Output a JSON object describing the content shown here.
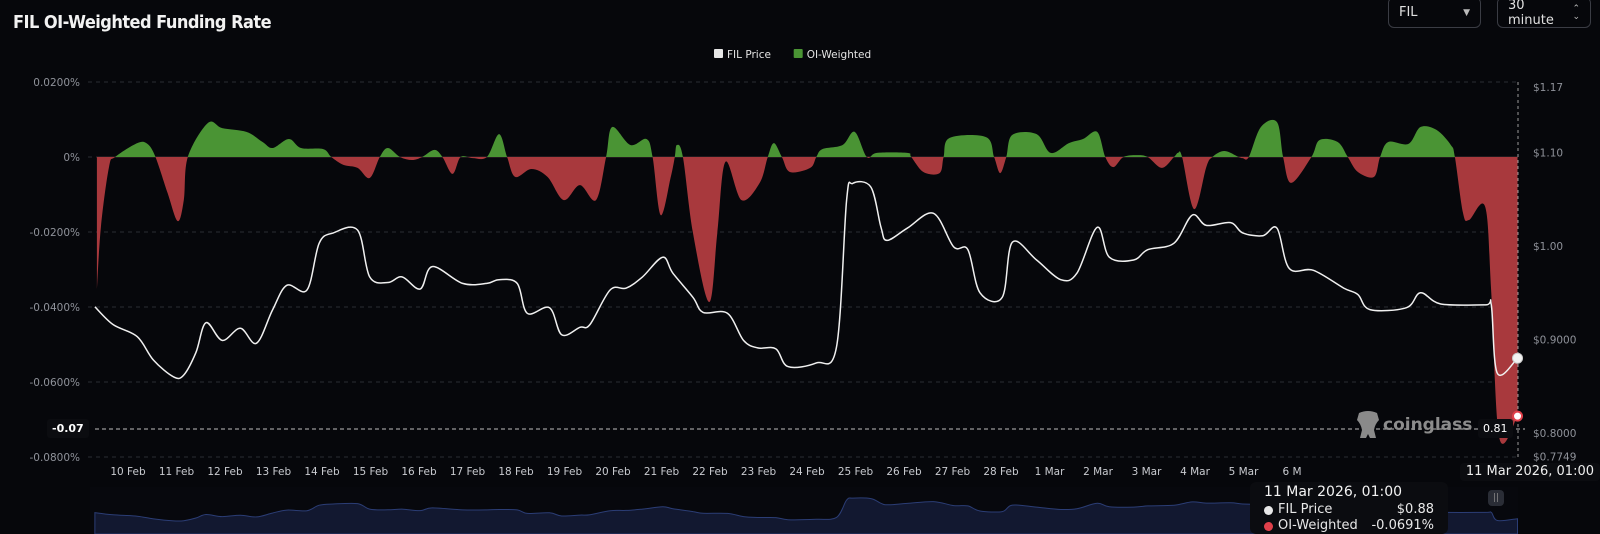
{
  "header": {
    "title": "FIL OI-Weighted Funding Rate"
  },
  "controls": {
    "symbol": "FIL",
    "interval": "30 minute"
  },
  "watermark": "coinglass",
  "tooltip": {
    "date": "11 Mar 2026, 01:00",
    "rows": [
      {
        "label": "FIL Price",
        "value": "$0.88",
        "color": "#e8e8e8"
      },
      {
        "label": "OI-Weighted",
        "value": "-0.0691%",
        "color": "#e0404a"
      }
    ]
  },
  "crosshair": {
    "x_label": "11 Mar 2026, 01:00",
    "y_left_label": "-0.07",
    "y_right_label": "0.81"
  },
  "chart_data": {
    "type": "line+area",
    "title": "FIL OI-Weighted Funding Rate",
    "legend": {
      "placement": "top-center",
      "entries": [
        {
          "name": "FIL Price",
          "color": "#e6e6e6"
        },
        {
          "name": "OI-Weighted",
          "color": "#4a9434"
        }
      ]
    },
    "colors": {
      "positive": "#4a9434",
      "negative": "#a8393d",
      "price": "#f0f0f0",
      "grid": "#2a2c33",
      "navigator": "#2b3d75"
    },
    "grid": true,
    "x_tick_labels": [
      "10 Feb",
      "11 Feb",
      "12 Feb",
      "13 Feb",
      "14 Feb",
      "15 Feb",
      "16 Feb",
      "17 Feb",
      "18 Feb",
      "19 Feb",
      "20 Feb",
      "21 Feb",
      "22 Feb",
      "23 Feb",
      "24 Feb",
      "25 Feb",
      "26 Feb",
      "27 Feb",
      "28 Feb",
      "1 Mar",
      "2 Mar",
      "3 Mar",
      "4 Mar",
      "5 Mar",
      "6 M"
    ],
    "y_left": {
      "label": "",
      "range": [
        -0.08,
        0.02
      ],
      "unit": "%",
      "ticks": [
        {
          "v": 0.02,
          "t": "0.0200%"
        },
        {
          "v": 0,
          "t": "0%"
        },
        {
          "v": -0.02,
          "t": "-0.0200%"
        },
        {
          "v": -0.04,
          "t": "-0.0400%"
        },
        {
          "v": -0.06,
          "t": "-0.0600%"
        },
        {
          "v": -0.08,
          "t": "-0.0800%"
        }
      ]
    },
    "y_right": {
      "label": "",
      "range": [
        0.7749,
        1.17
      ],
      "ticks": [
        {
          "v": 1.17,
          "t": "$1.17"
        },
        {
          "v": 1.1,
          "t": "$1.10"
        },
        {
          "v": 1.0,
          "t": "$1.00"
        },
        {
          "v": 0.9,
          "t": "$0.9000"
        },
        {
          "v": 0.8,
          "t": "$0.8000"
        },
        {
          "v": 0.7749,
          "t": "$0.7749"
        }
      ]
    },
    "series": [
      {
        "name": "FIL Price",
        "axis": "right",
        "points": [
          [
            "2026-02-09 17:00",
            0.935
          ],
          [
            "2026-02-10 02:00",
            0.916
          ],
          [
            "2026-02-10 14:00",
            0.903
          ],
          [
            "2026-02-10 22:00",
            0.878
          ],
          [
            "2026-02-11 08:00",
            0.86
          ],
          [
            "2026-02-11 13:00",
            0.862
          ],
          [
            "2026-02-11 19:00",
            0.886
          ],
          [
            "2026-02-12 00:00",
            0.918
          ],
          [
            "2026-02-12 08:00",
            0.899
          ],
          [
            "2026-02-12 17:00",
            0.912
          ],
          [
            "2026-02-13 01:00",
            0.896
          ],
          [
            "2026-02-13 09:00",
            0.932
          ],
          [
            "2026-02-13 16:00",
            0.958
          ],
          [
            "2026-02-14 02:00",
            0.953
          ],
          [
            "2026-02-14 08:00",
            1.003
          ],
          [
            "2026-02-14 15:00",
            1.014
          ],
          [
            "2026-02-15 03:00",
            1.017
          ],
          [
            "2026-02-15 09:00",
            0.967
          ],
          [
            "2026-02-15 18:00",
            0.961
          ],
          [
            "2026-02-16 01:00",
            0.967
          ],
          [
            "2026-02-16 10:00",
            0.954
          ],
          [
            "2026-02-16 16:00",
            0.978
          ],
          [
            "2026-02-17 07:00",
            0.96
          ],
          [
            "2026-02-17 19:00",
            0.96
          ],
          [
            "2026-02-18 01:00",
            0.964
          ],
          [
            "2026-02-18 10:00",
            0.96
          ],
          [
            "2026-02-18 15:00",
            0.928
          ],
          [
            "2026-02-19 02:00",
            0.934
          ],
          [
            "2026-02-19 08:00",
            0.905
          ],
          [
            "2026-02-19 17:00",
            0.913
          ],
          [
            "2026-02-19 22:00",
            0.916
          ],
          [
            "2026-02-20 08:00",
            0.953
          ],
          [
            "2026-02-20 16:00",
            0.955
          ],
          [
            "2026-02-21 00:00",
            0.967
          ],
          [
            "2026-02-21 10:00",
            0.988
          ],
          [
            "2026-02-21 15:00",
            0.971
          ],
          [
            "2026-02-22 01:00",
            0.945
          ],
          [
            "2026-02-22 06:00",
            0.929
          ],
          [
            "2026-02-22 18:00",
            0.928
          ],
          [
            "2026-02-23 02:00",
            0.899
          ],
          [
            "2026-02-23 09:00",
            0.891
          ],
          [
            "2026-02-23 18:00",
            0.89
          ],
          [
            "2026-02-24 00:00",
            0.871
          ],
          [
            "2026-02-24 14:00",
            0.875
          ],
          [
            "2026-02-25 00:00",
            0.892
          ],
          [
            "2026-02-25 05:00",
            1.049
          ],
          [
            "2026-02-25 08:00",
            1.067
          ],
          [
            "2026-02-25 17:00",
            1.063
          ],
          [
            "2026-02-25 22:00",
            1.02
          ],
          [
            "2026-02-26 01:00",
            1.006
          ],
          [
            "2026-02-26 11:00",
            1.019
          ],
          [
            "2026-02-27 00:00",
            1.035
          ],
          [
            "2026-02-27 10:00",
            0.999
          ],
          [
            "2026-02-27 17:00",
            0.996
          ],
          [
            "2026-02-27 23:00",
            0.95
          ],
          [
            "2026-02-28 10:00",
            0.945
          ],
          [
            "2026-02-28 15:00",
            1.004
          ],
          [
            "2026-03-01 03:00",
            0.985
          ],
          [
            "2026-03-01 15:00",
            0.964
          ],
          [
            "2026-03-01 23:00",
            0.971
          ],
          [
            "2026-03-02 09:00",
            1.02
          ],
          [
            "2026-03-02 15:00",
            0.988
          ],
          [
            "2026-03-03 03:00",
            0.985
          ],
          [
            "2026-03-03 10:00",
            0.996
          ],
          [
            "2026-03-03 23:00",
            1.003
          ],
          [
            "2026-03-04 08:00",
            1.033
          ],
          [
            "2026-03-04 15:00",
            1.022
          ],
          [
            "2026-03-05 03:00",
            1.025
          ],
          [
            "2026-03-05 09:00",
            1.014
          ],
          [
            "2026-03-05 19:00",
            1.011
          ],
          [
            "2026-03-06 02:00",
            1.019
          ],
          [
            "2026-03-06 08:00",
            0.976
          ],
          [
            "2026-03-06 20:00",
            0.974
          ],
          [
            "2026-03-07 11:00",
            0.955
          ],
          [
            "2026-03-07 18:00",
            0.948
          ],
          [
            "2026-03-08 00:00",
            0.932
          ],
          [
            "2026-03-08 18:00",
            0.934
          ],
          [
            "2026-03-09 01:00",
            0.95
          ],
          [
            "2026-03-09 11:00",
            0.938
          ],
          [
            "2026-03-10 09:00",
            0.937
          ],
          [
            "2026-03-10 12:00",
            0.937
          ],
          [
            "2026-03-10 15:00",
            0.864
          ],
          [
            "2026-03-11 01:00",
            0.88
          ]
        ]
      },
      {
        "name": "OI-Weighted",
        "axis": "left",
        "unit": "%",
        "points": [
          [
            "2026-02-09 18:00",
            -0.0355
          ],
          [
            "2026-02-09 20:00",
            -0.0187
          ],
          [
            "2026-02-10 00:00",
            -0.0027
          ],
          [
            "2026-02-10 03:00",
            0
          ],
          [
            "2026-02-10 14:00",
            0.0037
          ],
          [
            "2026-02-10 19:00",
            0.0035
          ],
          [
            "2026-02-10 23:00",
            0
          ],
          [
            "2026-02-11 05:00",
            -0.0096
          ],
          [
            "2026-02-11 10:00",
            -0.0171
          ],
          [
            "2026-02-11 13:00",
            -0.0115
          ],
          [
            "2026-02-11 15:00",
            0
          ],
          [
            "2026-02-12 01:00",
            0.0091
          ],
          [
            "2026-02-12 08:00",
            0.0077
          ],
          [
            "2026-02-12 20:00",
            0.0067
          ],
          [
            "2026-02-13 04:00",
            0.004
          ],
          [
            "2026-02-13 09:00",
            0.0024
          ],
          [
            "2026-02-13 17:00",
            0.0048
          ],
          [
            "2026-02-13 23:00",
            0.0024
          ],
          [
            "2026-02-14 10:00",
            0.0021
          ],
          [
            "2026-02-14 14:00",
            0
          ],
          [
            "2026-02-14 20:00",
            -0.0021
          ],
          [
            "2026-02-15 03:00",
            -0.0029
          ],
          [
            "2026-02-15 09:00",
            -0.0056
          ],
          [
            "2026-02-15 14:00",
            0
          ],
          [
            "2026-02-15 18:00",
            0.0024
          ],
          [
            "2026-02-16 00:00",
            0
          ],
          [
            "2026-02-16 06:00",
            -0.0008
          ],
          [
            "2026-02-16 11:00",
            0
          ],
          [
            "2026-02-16 17:00",
            0.0019
          ],
          [
            "2026-02-16 21:00",
            0
          ],
          [
            "2026-02-17 02:00",
            -0.0045
          ],
          [
            "2026-02-17 06:00",
            0
          ],
          [
            "2026-02-17 12:00",
            -0.0003
          ],
          [
            "2026-02-17 19:00",
            0
          ],
          [
            "2026-02-18 01:00",
            0.0061
          ],
          [
            "2026-02-18 05:00",
            0
          ],
          [
            "2026-02-18 09:00",
            -0.0053
          ],
          [
            "2026-02-18 17:00",
            -0.0032
          ],
          [
            "2026-02-19 01:00",
            -0.0053
          ],
          [
            "2026-02-19 09:00",
            -0.0115
          ],
          [
            "2026-02-19 17:00",
            -0.0075
          ],
          [
            "2026-02-20 01:00",
            -0.0115
          ],
          [
            "2026-02-20 06:00",
            0
          ],
          [
            "2026-02-20 09:00",
            0.008
          ],
          [
            "2026-02-20 18:00",
            0.0032
          ],
          [
            "2026-02-21 02:00",
            0.0048
          ],
          [
            "2026-02-21 05:00",
            0
          ],
          [
            "2026-02-21 09:00",
            -0.0155
          ],
          [
            "2026-02-21 14:00",
            -0.0053
          ],
          [
            "2026-02-21 16:00",
            0
          ],
          [
            "2026-02-21 17:00",
            0.0032
          ],
          [
            "2026-02-21 20:00",
            0
          ],
          [
            "2026-02-22 01:00",
            -0.0203
          ],
          [
            "2026-02-22 09:00",
            -0.0387
          ],
          [
            "2026-02-22 13:00",
            -0.0203
          ],
          [
            "2026-02-22 17:00",
            -0.0013
          ],
          [
            "2026-02-23 01:00",
            -0.0115
          ],
          [
            "2026-02-23 10:00",
            -0.0069
          ],
          [
            "2026-02-23 14:00",
            0
          ],
          [
            "2026-02-23 17:00",
            0.0037
          ],
          [
            "2026-02-23 21:00",
            0
          ],
          [
            "2026-02-24 01:00",
            -0.004
          ],
          [
            "2026-02-24 11:00",
            -0.0029
          ],
          [
            "2026-02-24 14:00",
            0
          ],
          [
            "2026-02-24 17:00",
            0.0021
          ],
          [
            "2026-02-25 03:00",
            0.0032
          ],
          [
            "2026-02-25 09:00",
            0.0067
          ],
          [
            "2026-02-25 15:00",
            0
          ],
          [
            "2026-02-25 20:00",
            0.0011
          ],
          [
            "2026-02-26 11:00",
            0.0011
          ],
          [
            "2026-02-26 13:00",
            0
          ],
          [
            "2026-02-26 19:00",
            -0.004
          ],
          [
            "2026-02-27 03:00",
            -0.0043
          ],
          [
            "2026-02-27 05:00",
            0
          ],
          [
            "2026-02-27 08:00",
            0.0051
          ],
          [
            "2026-02-28 02:00",
            0.0053
          ],
          [
            "2026-02-28 06:00",
            0
          ],
          [
            "2026-02-28 09:00",
            -0.0043
          ],
          [
            "2026-02-28 12:00",
            0
          ],
          [
            "2026-02-28 15:00",
            0.0059
          ],
          [
            "2026-03-01 03:00",
            0.0061
          ],
          [
            "2026-03-01 10:00",
            0.0011
          ],
          [
            "2026-03-01 19:00",
            0.0037
          ],
          [
            "2026-03-02 02:00",
            0.0048
          ],
          [
            "2026-03-02 09:00",
            0.0067
          ],
          [
            "2026-03-02 13:00",
            0
          ],
          [
            "2026-03-02 17:00",
            -0.0027
          ],
          [
            "2026-03-02 22:00",
            0
          ],
          [
            "2026-03-03 05:00",
            0.0005
          ],
          [
            "2026-03-03 10:00",
            0
          ],
          [
            "2026-03-03 17:00",
            -0.0029
          ],
          [
            "2026-03-03 23:00",
            0
          ],
          [
            "2026-03-04 01:00",
            0.0011
          ],
          [
            "2026-03-04 03:00",
            0
          ],
          [
            "2026-03-04 09:00",
            -0.0139
          ],
          [
            "2026-03-04 15:00",
            -0.0027
          ],
          [
            "2026-03-04 18:00",
            0
          ],
          [
            "2026-03-05 00:00",
            0.0016
          ],
          [
            "2026-03-05 07:00",
            0
          ],
          [
            "2026-03-05 09:00",
            -0.0003
          ],
          [
            "2026-03-05 12:00",
            0
          ],
          [
            "2026-03-05 18:00",
            0.008
          ],
          [
            "2026-03-06 02:00",
            0.0093
          ],
          [
            "2026-03-06 05:00",
            0
          ],
          [
            "2026-03-06 09:00",
            -0.0069
          ],
          [
            "2026-03-06 19:00",
            0
          ],
          [
            "2026-03-06 23:00",
            0.0045
          ],
          [
            "2026-03-07 08:00",
            0.004
          ],
          [
            "2026-03-07 13:00",
            0
          ],
          [
            "2026-03-07 18:00",
            -0.004
          ],
          [
            "2026-03-08 02:00",
            -0.0053
          ],
          [
            "2026-03-08 05:00",
            0
          ],
          [
            "2026-03-08 09:00",
            0.004
          ],
          [
            "2026-03-08 19:00",
            0.0035
          ],
          [
            "2026-03-09 01:00",
            0.008
          ],
          [
            "2026-03-09 09:00",
            0.0072
          ],
          [
            "2026-03-09 16:00",
            0.0032
          ],
          [
            "2026-03-09 18:00",
            0
          ],
          [
            "2026-03-09 22:00",
            -0.0149
          ],
          [
            "2026-03-10 01:00",
            -0.0168
          ],
          [
            "2026-03-10 09:00",
            -0.0133
          ],
          [
            "2026-03-10 12:00",
            -0.0363
          ],
          [
            "2026-03-10 16:00",
            -0.0749
          ],
          [
            "2026-03-11 01:00",
            -0.0691
          ]
        ]
      }
    ]
  }
}
